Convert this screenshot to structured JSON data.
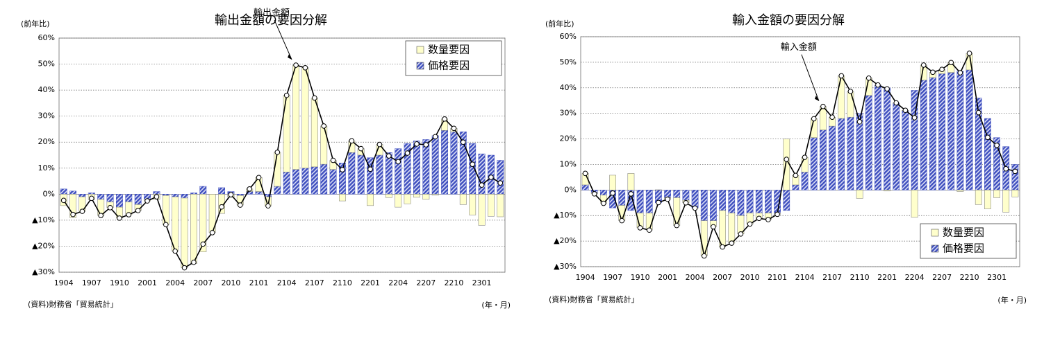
{
  "chart_data": [
    {
      "type": "bar",
      "title": "輸出金額の要因分解",
      "y_label": "(前年比)",
      "x_label": "(年・月)",
      "source": "(資料)財務省「貿易統計」",
      "categories": [
        "1904",
        null,
        null,
        "1907",
        null,
        null,
        "1910",
        null,
        null,
        "2001",
        null,
        null,
        "2004",
        null,
        null,
        "2007",
        null,
        null,
        "2010",
        null,
        null,
        "2101",
        null,
        null,
        "2104",
        null,
        null,
        "2107",
        null,
        null,
        "2110",
        null,
        null,
        "2201",
        null,
        null,
        "2204",
        null,
        null,
        "2207",
        null,
        null,
        "2210",
        null,
        null,
        "2301",
        null,
        null
      ],
      "series": [
        {
          "name": "数量要因",
          "color": "#ffffcc",
          "values": [
            -4.4,
            -9,
            -5.6,
            -2.1,
            -6.2,
            -2.2,
            -4.2,
            -4.9,
            -2.3,
            -0.6,
            -2,
            -11.2,
            -20.9,
            -26.8,
            -26.7,
            -22.2,
            -14.8,
            -7.4,
            -1.2,
            -3.7,
            1,
            5.4,
            -3.5,
            13.1,
            29.5,
            40.1,
            38.6,
            26.5,
            14.7,
            3.5,
            -2.6,
            4.5,
            2.5,
            -4.4,
            4.1,
            -1.3,
            -5,
            -3.7,
            -1.2,
            -2,
            -0.4,
            4.4,
            1.3,
            -4,
            -8,
            -12,
            -8.5,
            -8.7
          ]
        },
        {
          "name": "価格要因",
          "color": "#3f4fbf",
          "values": [
            2,
            1.2,
            -1,
            0.5,
            -2,
            -3,
            -5,
            -3,
            -4,
            -2,
            1,
            -0.5,
            -1,
            -1.5,
            0.5,
            3,
            0,
            2.5,
            1,
            -0.5,
            1,
            1,
            -1,
            3,
            8.5,
            9.5,
            10,
            10.5,
            11.5,
            9.5,
            12,
            16,
            15,
            14,
            15,
            16,
            17.5,
            19.5,
            20.5,
            21,
            22.5,
            24.5,
            24,
            24,
            19.5,
            15.5,
            15,
            13
          ]
        },
        {
          "name": "輸出金額",
          "type": "line",
          "color": "#000000",
          "values": [
            -2.4,
            -7.8,
            -6.6,
            -1.6,
            -8.2,
            -5.2,
            -9.2,
            -7.9,
            -6.3,
            -2.6,
            -1,
            -11.7,
            -21.9,
            -28.3,
            -26.2,
            -19.2,
            -14.8,
            -4.9,
            -0.2,
            -4.2,
            2,
            6.4,
            -4.5,
            16.1,
            38,
            49.6,
            48.6,
            37,
            26.2,
            13,
            9.4,
            20.5,
            17.5,
            9.6,
            19.1,
            14.7,
            12.5,
            15.8,
            19.3,
            19,
            22.1,
            28.9,
            25.3,
            20,
            11.5,
            3.5,
            6.5,
            4.3
          ]
        }
      ],
      "ylim": [
        -30,
        60
      ],
      "yticks": [
        {
          "value": -30,
          "label": "▲30%"
        },
        {
          "value": -20,
          "label": "▲20%"
        },
        {
          "value": -10,
          "label": "▲10%"
        },
        {
          "value": 0,
          "label": "0%"
        },
        {
          "value": 10,
          "label": "10%"
        },
        {
          "value": 20,
          "label": "20%"
        },
        {
          "value": 30,
          "label": "30%"
        },
        {
          "value": 40,
          "label": "40%"
        },
        {
          "value": 50,
          "label": "50%"
        },
        {
          "value": 60,
          "label": "60%"
        }
      ],
      "grid": true,
      "legend": "upper right"
    },
    {
      "type": "bar",
      "title": "輸入金額の要因分解",
      "y_label": "(前年比)",
      "x_label": "(年・月)",
      "source": "(資料)財務省「貿易統計」",
      "categories": [
        "1904",
        null,
        null,
        "1907",
        null,
        null,
        "1910",
        null,
        null,
        "2001",
        null,
        null,
        "2004",
        null,
        null,
        "2007",
        null,
        null,
        "2010",
        null,
        null,
        "2101",
        null,
        null,
        "2104",
        null,
        null,
        "2107",
        null,
        null,
        "2110",
        null,
        null,
        "2201",
        null,
        null,
        "2204",
        null,
        null,
        "2207",
        null,
        null,
        "2210",
        null,
        null,
        "2301",
        null,
        null
      ],
      "series": [
        {
          "name": "数量要因",
          "color": "#ffffcc",
          "values": [
            4.5,
            -0.5,
            -3.2,
            5.8,
            -6,
            6.5,
            -5.8,
            -6.7,
            0.1,
            -0.6,
            -10.9,
            -1,
            -0.1,
            -13.8,
            -2.4,
            -14.3,
            -11.8,
            -7.2,
            -4.3,
            -2.1,
            -2.6,
            -0.5,
            20,
            3.7,
            5.8,
            7.4,
            9.2,
            3.5,
            16.7,
            10.1,
            -3.3,
            6.8,
            0.1,
            -0.4,
            0.1,
            0.2,
            -10.7,
            5.9,
            2.1,
            1.7,
            3.9,
            -0.6,
            6.5,
            -5.7,
            -7.4,
            -3,
            -8.7,
            -2.7
          ]
        },
        {
          "name": "価格要因",
          "color": "#3f4fbf",
          "values": [
            2,
            -1,
            -2,
            -7,
            -6,
            -8,
            -9,
            -9,
            -5,
            -3,
            -3,
            -4,
            -7,
            -12,
            -12,
            -8,
            -9,
            -10,
            -9,
            -9,
            -9,
            -9,
            -8,
            2,
            7,
            20.5,
            23.5,
            25,
            28,
            28.5,
            30,
            37,
            41,
            40,
            34,
            31,
            39,
            43,
            44,
            45.5,
            46,
            46.5,
            47,
            36,
            28,
            20.5,
            17,
            10
          ]
        },
        {
          "name": "輸入金額",
          "type": "line",
          "color": "#000000",
          "values": [
            6.5,
            -1.5,
            -5.2,
            -1.2,
            -12,
            -1.5,
            -14.8,
            -15.7,
            -4.9,
            -3.6,
            -13.9,
            -5,
            -7.1,
            -25.8,
            -14.4,
            -22.3,
            -20.8,
            -17.2,
            -13.3,
            -11.1,
            -11.6,
            -9.5,
            12,
            5.7,
            12.8,
            27.9,
            32.7,
            28.5,
            44.7,
            38.6,
            26.7,
            43.8,
            41.1,
            39.6,
            34.1,
            31.2,
            28.3,
            48.9,
            46.1,
            47.2,
            49.9,
            45.9,
            53.5,
            30.3,
            20.6,
            17.5,
            8.3,
            7.3
          ]
        }
      ],
      "ylim": [
        -30,
        60
      ],
      "yticks": [
        {
          "value": -30,
          "label": "▲30%"
        },
        {
          "value": -20,
          "label": "▲20%"
        },
        {
          "value": -10,
          "label": "▲10%"
        },
        {
          "value": 0,
          "label": "0%"
        },
        {
          "value": 10,
          "label": "10%"
        },
        {
          "value": 20,
          "label": "20%"
        },
        {
          "value": 30,
          "label": "30%"
        },
        {
          "value": 40,
          "label": "40%"
        },
        {
          "value": 50,
          "label": "50%"
        },
        {
          "value": 60,
          "label": "60%"
        }
      ],
      "grid": true,
      "legend": "lower right"
    }
  ]
}
